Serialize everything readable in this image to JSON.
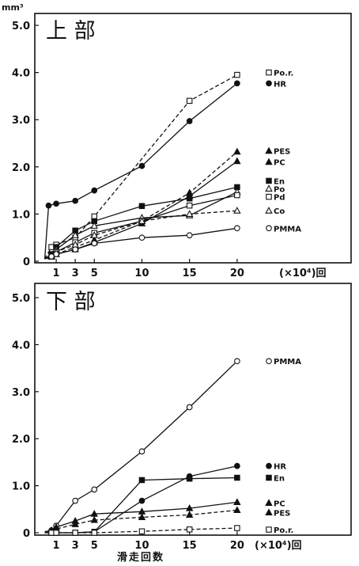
{
  "chart_data": [
    {
      "type": "line",
      "title": "上 部",
      "ylabel": "mm³",
      "xlabel": "",
      "x_unit_label": "(×10⁴)回",
      "x_ticks": [
        1,
        3,
        5,
        10,
        15,
        20
      ],
      "y_ticks": [
        "0",
        "1.0",
        "2.0",
        "3.0",
        "4.0",
        "5.0"
      ],
      "ylim": [
        0,
        5
      ],
      "xlim": [
        -1,
        23
      ],
      "grid": false,
      "series": [
        {
          "name": "Po.r.",
          "marker": "square-open",
          "dashed": true,
          "x": [
            -0.2,
            0.5,
            1,
            3,
            5,
            15,
            20
          ],
          "y": [
            0.05,
            0.3,
            0.35,
            0.5,
            0.95,
            3.4,
            3.95
          ]
        },
        {
          "name": "HR",
          "marker": "circle-filled",
          "dashed": false,
          "x": [
            -0.2,
            0.2,
            1,
            3,
            5,
            10,
            15,
            20
          ],
          "y": [
            0.05,
            1.18,
            1.22,
            1.28,
            1.5,
            2.02,
            2.97,
            3.77
          ]
        },
        {
          "name": "PES",
          "marker": "triangle-filled",
          "dashed": true,
          "x": [
            -0.2,
            0.5,
            1,
            3,
            5,
            10,
            15,
            20
          ],
          "y": [
            0.05,
            0.1,
            0.15,
            0.3,
            0.45,
            0.85,
            1.45,
            2.32
          ]
        },
        {
          "name": "PC",
          "marker": "triangle-filled",
          "dashed": false,
          "x": [
            -0.2,
            0.5,
            1,
            3,
            5,
            10,
            15,
            20
          ],
          "y": [
            0.05,
            0.1,
            0.15,
            0.25,
            0.4,
            0.8,
            1.38,
            2.12
          ]
        },
        {
          "name": "En",
          "marker": "square-filled",
          "dashed": false,
          "x": [
            -0.2,
            0.5,
            1,
            3,
            5,
            10,
            15,
            20
          ],
          "y": [
            0.05,
            0.15,
            0.3,
            0.65,
            0.85,
            1.17,
            1.33,
            1.57
          ]
        },
        {
          "name": "Po",
          "marker": "triangle-open",
          "dashed": false,
          "x": [
            -0.2,
            0.5,
            1,
            3,
            5,
            10,
            15,
            20
          ],
          "y": [
            0.05,
            0.12,
            0.25,
            0.55,
            0.75,
            0.92,
            0.97,
            1.47
          ]
        },
        {
          "name": "Pd",
          "marker": "square-open",
          "dashed": false,
          "x": [
            -0.2,
            0.5,
            1,
            3,
            5,
            10,
            15,
            20
          ],
          "y": [
            0.05,
            0.1,
            0.2,
            0.4,
            0.6,
            0.85,
            1.18,
            1.4
          ]
        },
        {
          "name": "Co",
          "marker": "triangle-open",
          "dashed": true,
          "x": [
            -0.2,
            0.5,
            1,
            3,
            5,
            10,
            15,
            20
          ],
          "y": [
            0.05,
            0.1,
            0.2,
            0.35,
            0.55,
            0.85,
            1.0,
            1.07
          ]
        },
        {
          "name": "PMMA",
          "marker": "circle-open",
          "dashed": false,
          "x": [
            -0.2,
            0.5,
            1,
            3,
            5,
            10,
            15,
            20
          ],
          "y": [
            0.05,
            0.1,
            0.15,
            0.25,
            0.38,
            0.5,
            0.55,
            0.7
          ]
        }
      ]
    },
    {
      "type": "line",
      "title": "下 部",
      "ylabel": "",
      "xlabel": "滑走回数",
      "x_unit_label": "(×10⁴)回",
      "x_ticks": [
        1,
        3,
        5,
        10,
        15,
        20
      ],
      "y_ticks": [
        "0",
        "1.0",
        "2.0",
        "3.0",
        "4.0",
        "5.0"
      ],
      "ylim": [
        0,
        5
      ],
      "xlim": [
        -1,
        23
      ],
      "grid": false,
      "series": [
        {
          "name": "PMMA",
          "marker": "circle-open",
          "dashed": false,
          "x": [
            -0.2,
            0.5,
            1,
            3,
            5,
            10,
            15,
            20
          ],
          "y": [
            0.02,
            0.05,
            0.15,
            0.68,
            0.92,
            1.73,
            2.67,
            3.65
          ]
        },
        {
          "name": "HR",
          "marker": "circle-filled",
          "dashed": false,
          "x": [
            -0.2,
            0.5,
            1,
            3,
            5,
            10,
            15,
            20
          ],
          "y": [
            0.0,
            0.0,
            0.0,
            0.0,
            0.02,
            0.68,
            1.2,
            1.42
          ]
        },
        {
          "name": "En",
          "marker": "square-filled",
          "dashed": false,
          "x": [
            -0.2,
            0.5,
            1,
            3,
            5,
            10,
            15,
            20
          ],
          "y": [
            0.0,
            0.0,
            0.0,
            0.0,
            0.02,
            1.12,
            1.15,
            1.17
          ]
        },
        {
          "name": "PC",
          "marker": "triangle-filled",
          "dashed": false,
          "x": [
            -0.2,
            0.5,
            1,
            3,
            5,
            10,
            15,
            20
          ],
          "y": [
            0.02,
            0.05,
            0.12,
            0.25,
            0.4,
            0.45,
            0.52,
            0.65
          ]
        },
        {
          "name": "PES",
          "marker": "triangle-filled",
          "dashed": true,
          "x": [
            -0.2,
            0.5,
            1,
            3,
            5,
            10,
            15,
            20
          ],
          "y": [
            0.02,
            0.04,
            0.08,
            0.18,
            0.27,
            0.33,
            0.38,
            0.48
          ]
        },
        {
          "name": "Po.r.",
          "marker": "square-open",
          "dashed": true,
          "x": [
            -0.2,
            0.5,
            1,
            3,
            5,
            10,
            15,
            20
          ],
          "y": [
            0.0,
            0.0,
            0.0,
            0.0,
            0.0,
            0.03,
            0.07,
            0.1
          ]
        }
      ]
    }
  ]
}
